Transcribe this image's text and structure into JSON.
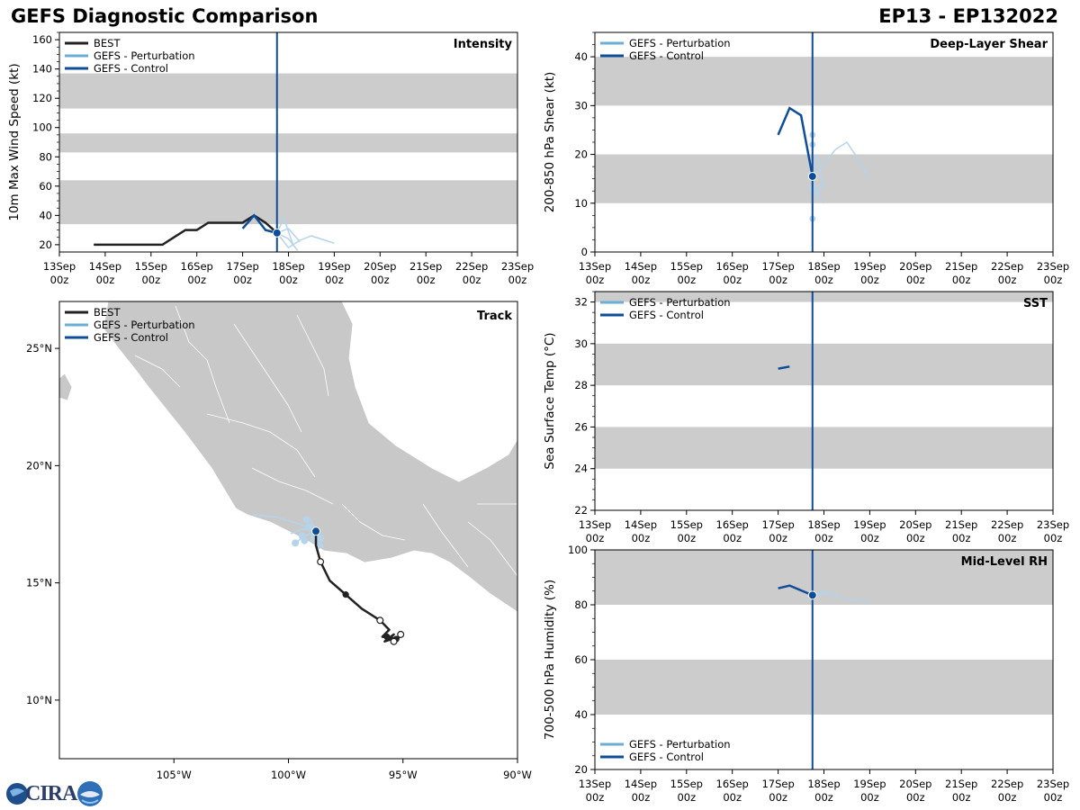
{
  "page": {
    "title": "GEFS Diagnostic Comparison",
    "storm": "EP13 - EP132022",
    "logo_text": "CIRA"
  },
  "colors": {
    "best": "#222222",
    "perturbation": "#6aaed6",
    "perturbation_light": "#b5d4ea",
    "control": "#0d4d99",
    "band": "#cccccc",
    "land": "#c8c8c8"
  },
  "legend_labels": {
    "best": "BEST",
    "perturbation": "GEFS - Perturbation",
    "control": "GEFS - Control"
  },
  "time_axis": {
    "day_labels": [
      "13Sep",
      "14Sep",
      "15Sep",
      "16Sep",
      "17Sep",
      "18Sep",
      "19Sep",
      "20Sep",
      "21Sep",
      "22Sep",
      "23Sep"
    ],
    "hour_label": "00z",
    "current_day": 4.75
  },
  "chart_data": [
    {
      "id": "intensity",
      "type": "line",
      "title": "Intensity",
      "ylabel": "10m Max Wind Speed (kt)",
      "ylim": [
        15,
        165
      ],
      "yticks": [
        20,
        40,
        60,
        80,
        100,
        120,
        140,
        160
      ],
      "bands": [
        [
          34,
          64
        ],
        [
          83,
          96
        ],
        [
          113,
          137
        ]
      ],
      "legend": [
        "best",
        "perturbation",
        "control"
      ],
      "best": {
        "x": [
          0.75,
          1,
          1.25,
          1.5,
          1.75,
          2,
          2.25,
          2.5,
          2.75,
          3,
          3.25,
          3.5,
          3.75,
          4,
          4.25,
          4.5,
          4.75
        ],
        "y": [
          20,
          20,
          20,
          20,
          20,
          20,
          20,
          25,
          30,
          30,
          35,
          35,
          35,
          35,
          40,
          35,
          28
        ]
      },
      "control": {
        "x": [
          4,
          4.25,
          4.5,
          4.75
        ],
        "y": [
          31,
          40,
          30,
          28
        ]
      },
      "perturbations": [
        {
          "x": [
            4.75,
            5,
            5.25,
            5.5,
            6
          ],
          "y": [
            28,
            18,
            23,
            26,
            21
          ]
        },
        {
          "x": [
            4.75,
            4.9,
            5.1
          ],
          "y": [
            28,
            38,
            20
          ]
        },
        {
          "x": [
            4.75,
            5,
            5.25
          ],
          "y": [
            28,
            31,
            22
          ]
        },
        {
          "x": [
            4.75,
            5,
            5.2
          ],
          "y": [
            28,
            24,
            16
          ]
        }
      ],
      "current_marker": {
        "x": 4.75,
        "y": 28
      }
    },
    {
      "id": "shear",
      "type": "line",
      "title": "Deep-Layer Shear",
      "ylabel": "200-850 hPa Shear (kt)",
      "ylim": [
        0,
        45
      ],
      "yticks": [
        0,
        10,
        20,
        30,
        40
      ],
      "bands": [
        [
          10,
          20
        ],
        [
          30,
          40
        ]
      ],
      "legend": [
        "perturbation",
        "control"
      ],
      "control": {
        "x": [
          4,
          4.25,
          4.5,
          4.75
        ],
        "y": [
          24,
          29.5,
          28,
          15.5
        ]
      },
      "perturbations": [
        {
          "x": [
            4.75,
            5,
            5.25,
            5.5,
            5.75,
            6
          ],
          "y": [
            15.5,
            18,
            21,
            22.5,
            19,
            15
          ]
        },
        {
          "x": [
            4.75,
            4.85,
            5
          ],
          "y": [
            15.5,
            20,
            13
          ]
        },
        {
          "x": [
            4.75,
            4.85,
            5
          ],
          "y": [
            15.5,
            12,
            10
          ]
        },
        {
          "x": [
            4.75,
            4.9,
            5.1
          ],
          "y": [
            15.5,
            17,
            19
          ]
        },
        {
          "x": [
            4.75,
            4.85,
            4.95
          ],
          "y": [
            15.5,
            11,
            14
          ]
        }
      ],
      "scatter": [
        {
          "x": 4.75,
          "y": 24
        },
        {
          "x": 4.75,
          "y": 22
        },
        {
          "x": 4.75,
          "y": 6.8
        },
        {
          "x": 4.75,
          "y": 13
        }
      ],
      "current_marker": {
        "x": 4.75,
        "y": 15.5
      }
    },
    {
      "id": "sst",
      "type": "line",
      "title": "SST",
      "ylabel": "Sea Surface Temp (°C)",
      "ylim": [
        22,
        32.5
      ],
      "yticks": [
        22,
        24,
        26,
        28,
        30,
        32
      ],
      "bands": [
        [
          24,
          26
        ],
        [
          28,
          30
        ],
        [
          32,
          34
        ]
      ],
      "legend": [
        "perturbation",
        "control"
      ],
      "control": {
        "x": [
          4,
          4.25
        ],
        "y": [
          28.8,
          28.9
        ]
      },
      "perturbations": [],
      "current_marker": null
    },
    {
      "id": "rh",
      "type": "line",
      "title": "Mid-Level RH",
      "ylabel": "700-500 hPa Humidity (%)",
      "ylim": [
        20,
        100
      ],
      "yticks": [
        20,
        40,
        60,
        80,
        100
      ],
      "bands": [
        [
          40,
          60
        ],
        [
          80,
          100
        ]
      ],
      "legend": [
        "perturbation",
        "control"
      ],
      "legend_position": "bottom-left",
      "control": {
        "x": [
          4,
          4.25,
          4.75
        ],
        "y": [
          86,
          87,
          83.5
        ]
      },
      "perturbations": [
        {
          "x": [
            4.75,
            5,
            5.25,
            5.5,
            6
          ],
          "y": [
            83.5,
            85,
            83,
            82,
            81
          ]
        },
        {
          "x": [
            4.75,
            5,
            5.3
          ],
          "y": [
            83.5,
            84,
            84
          ]
        }
      ],
      "current_marker": {
        "x": 4.75,
        "y": 83.5
      }
    },
    {
      "id": "track",
      "type": "scatter",
      "title": "Track",
      "xlim": [
        -110,
        -90
      ],
      "ylim": [
        7.5,
        27
      ],
      "xticks": [
        {
          "v": -105,
          "label": "105°W"
        },
        {
          "v": -100,
          "label": "100°W"
        },
        {
          "v": -95,
          "label": "95°W"
        },
        {
          "v": -90,
          "label": "90°W"
        }
      ],
      "yticks": [
        {
          "v": 10,
          "label": "10°N"
        },
        {
          "v": 15,
          "label": "15°N"
        },
        {
          "v": 20,
          "label": "20°N"
        },
        {
          "v": 25,
          "label": "25°N"
        }
      ],
      "legend": [
        "best",
        "perturbation",
        "control"
      ],
      "best_track": [
        [
          -95.1,
          12.7
        ],
        [
          -95.5,
          12.6
        ],
        [
          -95.8,
          12.5
        ],
        [
          -95.4,
          12.8
        ],
        [
          -95.6,
          12.6
        ],
        [
          -95.2,
          12.6
        ],
        [
          -95.9,
          12.7
        ],
        [
          -95.6,
          13.0
        ],
        [
          -96.0,
          13.4
        ],
        [
          -96.8,
          13.9
        ],
        [
          -97.5,
          14.5
        ],
        [
          -98.2,
          15.1
        ],
        [
          -98.6,
          15.9
        ],
        [
          -98.8,
          16.6
        ],
        [
          -98.8,
          17.2
        ]
      ],
      "best_open_points": [
        [
          -95.1,
          12.8
        ],
        [
          -95.4,
          12.5
        ],
        [
          -96.0,
          13.4
        ],
        [
          -98.6,
          15.9
        ]
      ],
      "best_filled_points": [
        [
          -95.7,
          12.7
        ],
        [
          -95.3,
          12.6
        ],
        [
          -97.5,
          14.5
        ]
      ],
      "control_point": [
        -98.8,
        17.2
      ],
      "perturbation_tracks": [
        [
          [
            -98.8,
            17.2
          ],
          [
            -99.5,
            17.5
          ],
          [
            -100.5,
            17.8
          ],
          [
            -101.5,
            17.9
          ]
        ],
        [
          [
            -98.8,
            17.2
          ],
          [
            -99.3,
            17.0
          ],
          [
            -99.7,
            16.7
          ]
        ],
        [
          [
            -98.8,
            17.2
          ],
          [
            -99.0,
            17.6
          ],
          [
            -99.2,
            17.8
          ]
        ],
        [
          [
            -98.8,
            17.2
          ],
          [
            -98.6,
            16.8
          ],
          [
            -98.5,
            16.5
          ]
        ],
        [
          [
            -98.8,
            17.2
          ],
          [
            -99.4,
            17.3
          ],
          [
            -99.9,
            17.1
          ]
        ]
      ],
      "perturbation_points": [
        [
          -99.2,
          17.7
        ],
        [
          -99.1,
          17.4
        ],
        [
          -99.4,
          17.0
        ],
        [
          -99.7,
          16.7
        ],
        [
          -98.7,
          16.6
        ],
        [
          -98.6,
          16.9
        ],
        [
          -99.3,
          16.8
        ],
        [
          -98.9,
          16.9
        ]
      ]
    }
  ]
}
